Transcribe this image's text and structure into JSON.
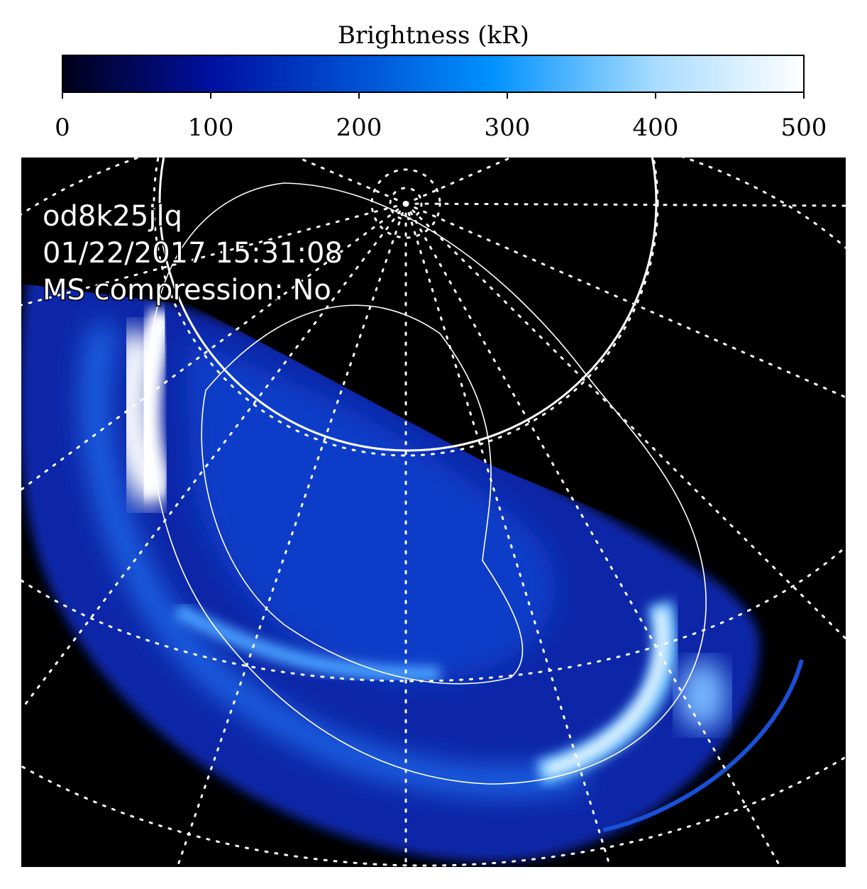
{
  "chart_data": {
    "type": "image",
    "colorbar_label": "Brightness (kR)",
    "clim": [
      0,
      500
    ],
    "colorbar_ticks": [
      0,
      100,
      200,
      300,
      400,
      500
    ],
    "annotations": [
      "od8k25jlq",
      "01/22/2017 15:31:08",
      "MS compression: No"
    ]
  }
}
